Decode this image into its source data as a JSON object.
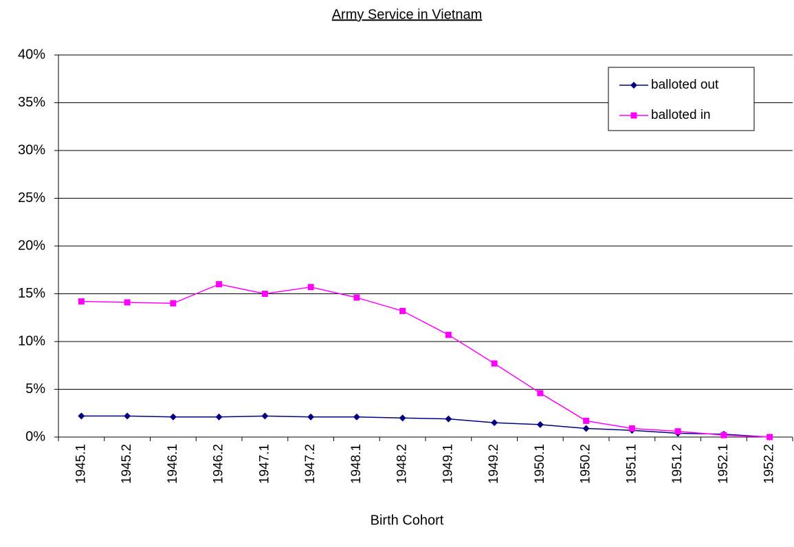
{
  "chart_data": {
    "type": "line",
    "title": "Army Service in Vietnam",
    "x_label": "Birth Cohort",
    "categories": [
      "1945.1",
      "1945.2",
      "1946.1",
      "1946.2",
      "1947.1",
      "1947.2",
      "1948.1",
      "1948.2",
      "1949.1",
      "1949.2",
      "1950.1",
      "1950.2",
      "1951.1",
      "1951.2",
      "1952.1",
      "1952.2"
    ],
    "series": [
      {
        "name": "balloted out",
        "color": "#000080",
        "marker": "diamond",
        "values": [
          2.2,
          2.2,
          2.1,
          2.1,
          2.2,
          2.1,
          2.1,
          2.0,
          1.9,
          1.5,
          1.3,
          0.9,
          0.7,
          0.4,
          0.3,
          0.0
        ]
      },
      {
        "name": "balloted in",
        "color": "#ff00ff",
        "marker": "square",
        "values": [
          14.2,
          14.1,
          14.0,
          16.0,
          15.0,
          15.7,
          14.6,
          13.2,
          10.7,
          7.7,
          4.6,
          1.7,
          0.9,
          0.6,
          0.2,
          0.0
        ]
      }
    ],
    "ylim": [
      0,
      40
    ],
    "yticks": [
      {
        "value": 0,
        "label": "0%"
      },
      {
        "value": 5,
        "label": "5%"
      },
      {
        "value": 10,
        "label": "10%"
      },
      {
        "value": 15,
        "label": "15%"
      },
      {
        "value": 20,
        "label": "20%"
      },
      {
        "value": 25,
        "label": "25%"
      },
      {
        "value": 30,
        "label": "30%"
      },
      {
        "value": 35,
        "label": "35%"
      },
      {
        "value": 40,
        "label": "40%"
      }
    ],
    "grid": true,
    "legend": "upper right"
  }
}
